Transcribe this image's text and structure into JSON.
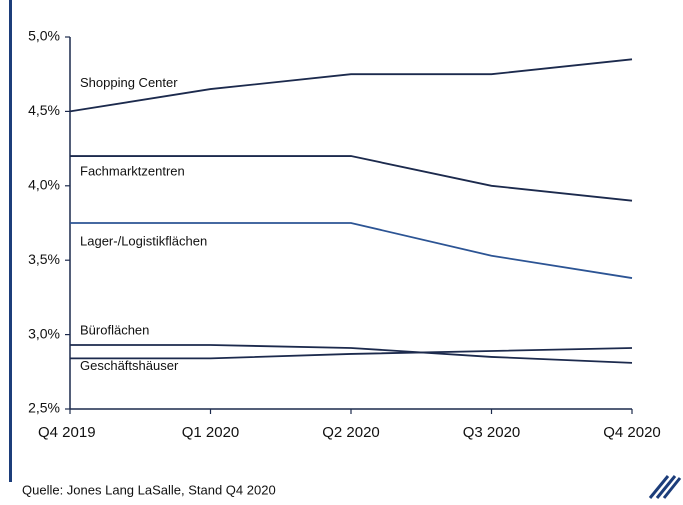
{
  "chart_data": {
    "type": "line",
    "categories": [
      "Q4 2019",
      "Q1 2020",
      "Q2 2020",
      "Q3 2020",
      "Q4 2020"
    ],
    "series": [
      {
        "name": "Shopping Center",
        "color": "#1c2a4d",
        "values": [
          4.5,
          4.65,
          4.75,
          4.75,
          4.85
        ]
      },
      {
        "name": "Fachmarktzentren",
        "color": "#1c2a4d",
        "values": [
          4.2,
          4.2,
          4.2,
          4.0,
          3.9
        ]
      },
      {
        "name": "Lager-/Logistikflächen",
        "color": "#2c5494",
        "values": [
          3.75,
          3.75,
          3.75,
          3.53,
          3.38
        ]
      },
      {
        "name": "Büroflächen",
        "color": "#1c2a4d",
        "values": [
          2.93,
          2.93,
          2.91,
          2.85,
          2.81
        ]
      },
      {
        "name": "Geschäftshäuser",
        "color": "#1c2a4d",
        "values": [
          2.84,
          2.84,
          2.87,
          2.89,
          2.91
        ]
      }
    ],
    "ylim": [
      2.5,
      5.0
    ],
    "yticks": [
      {
        "value": 2.5,
        "label": "2,5%"
      },
      {
        "value": 3.0,
        "label": "3,0%"
      },
      {
        "value": 3.5,
        "label": "3,5%"
      },
      {
        "value": 4.0,
        "label": "4,0%"
      },
      {
        "value": 4.5,
        "label": "4,5%"
      },
      {
        "value": 5.0,
        "label": "5,0%"
      }
    ],
    "grid": false,
    "source": "Quelle: Jones Lang LaSalle, Stand Q4 2020"
  }
}
